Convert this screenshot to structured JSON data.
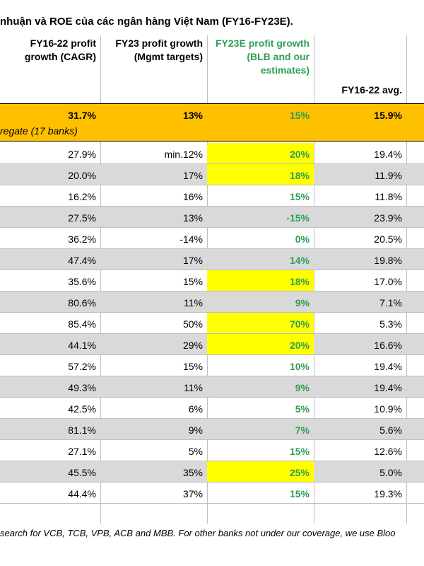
{
  "title": "nhuận và ROE của các ngân hàng Việt Nam (FY16-FY23E).",
  "headers": {
    "cagr": "FY16-22 profit growth (CAGR)",
    "fy23_mgmt": "FY23 profit growth (Mgmt targets)",
    "fy23e": "FY23E profit growth (BLB and our estimates)",
    "avg": "FY16-22 avg."
  },
  "aggregate": {
    "cagr": "31.7%",
    "fy23_mgmt": "13%",
    "fy23e": "15%",
    "avg": "15.9%",
    "label": "regate (17 banks)"
  },
  "rows": [
    {
      "cagr": "27.9%",
      "mgmt": "min.12%",
      "est": "20%",
      "avg": "19.4%",
      "hl": true
    },
    {
      "cagr": "20.0%",
      "mgmt": "17%",
      "est": "18%",
      "avg": "11.9%",
      "hl": true
    },
    {
      "cagr": "16.2%",
      "mgmt": "16%",
      "est": "15%",
      "avg": "11.8%",
      "hl": false
    },
    {
      "cagr": "27.5%",
      "mgmt": "13%",
      "est": "-15%",
      "avg": "23.9%",
      "hl": false
    },
    {
      "cagr": "36.2%",
      "mgmt": "-14%",
      "est": "0%",
      "avg": "20.5%",
      "hl": false
    },
    {
      "cagr": "47.4%",
      "mgmt": "17%",
      "est": "14%",
      "avg": "19.8%",
      "hl": false
    },
    {
      "cagr": "35.6%",
      "mgmt": "15%",
      "est": "18%",
      "avg": "17.0%",
      "hl": true
    },
    {
      "cagr": "80.6%",
      "mgmt": "11%",
      "est": "9%",
      "avg": "7.1%",
      "hl": false
    },
    {
      "cagr": "85.4%",
      "mgmt": "50%",
      "est": "70%",
      "avg": "5.3%",
      "hl": true
    },
    {
      "cagr": "44.1%",
      "mgmt": "29%",
      "est": "20%",
      "avg": "16.6%",
      "hl": true
    },
    {
      "cagr": "57.2%",
      "mgmt": "15%",
      "est": "10%",
      "avg": "19.4%",
      "hl": false
    },
    {
      "cagr": "49.3%",
      "mgmt": "11%",
      "est": "9%",
      "avg": "19.4%",
      "hl": false
    },
    {
      "cagr": "42.5%",
      "mgmt": "6%",
      "est": "5%",
      "avg": "10.9%",
      "hl": false
    },
    {
      "cagr": "81.1%",
      "mgmt": "9%",
      "est": "7%",
      "avg": "5.6%",
      "hl": false
    },
    {
      "cagr": "27.1%",
      "mgmt": "5%",
      "est": "15%",
      "avg": "12.6%",
      "hl": false
    },
    {
      "cagr": "45.5%",
      "mgmt": "35%",
      "est": "25%",
      "avg": "5.0%",
      "hl": true
    },
    {
      "cagr": "44.4%",
      "mgmt": "37%",
      "est": "15%",
      "avg": "19.3%",
      "hl": false
    }
  ],
  "footnote": "search for VCB, TCB, VPB, ACB and MBB. For other banks not under our coverage, we use Bloo",
  "colors": {
    "aggregate_bg": "#ffc000",
    "highlight": "#ffff00",
    "estimate_text": "#2e9e52",
    "shade": "#d9d9d9"
  }
}
